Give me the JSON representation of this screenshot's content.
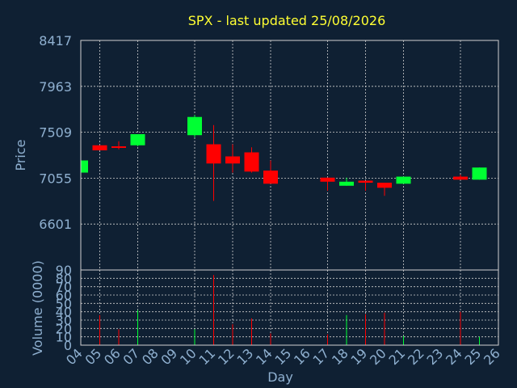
{
  "chart_data": {
    "type": "candlestick",
    "title": "SPX - last updated 25/08/2026",
    "xlabel": "Day",
    "price_panel": {
      "ylabel": "Price",
      "ylim": [
        6147,
        8417
      ],
      "yticks": [
        "8417",
        "7963",
        "7509",
        "7055",
        "6601"
      ],
      "ytick_values": [
        8417,
        7963,
        7509,
        7055,
        6601
      ]
    },
    "volume_panel": {
      "ylabel": "Volume (0000)",
      "ylim": [
        0,
        90
      ],
      "yticks": [
        "90",
        "80",
        "70",
        "60",
        "50",
        "40",
        "30",
        "20",
        "10",
        "0"
      ],
      "ytick_values": [
        90,
        80,
        70,
        60,
        50,
        40,
        30,
        20,
        10,
        0
      ]
    },
    "x_categories": [
      "04",
      "05",
      "06",
      "07",
      "08",
      "09",
      "10",
      "11",
      "12",
      "13",
      "14",
      "15",
      "16",
      "17",
      "18",
      "19",
      "20",
      "21",
      "22",
      "23",
      "24",
      "25",
      "26"
    ],
    "x_gridlines": [
      "05",
      "07",
      "10",
      "12",
      "14",
      "17",
      "19",
      "21",
      "24"
    ],
    "colors": {
      "up": "#00ff33",
      "down": "#ff0000",
      "title": "#ffff33",
      "axis_text": "#8fb0d0",
      "background": "#0f2033",
      "grid": "#d0d0d0"
    },
    "candles": [
      {
        "day": "04",
        "open": 7110,
        "high": 7240,
        "low": 7100,
        "close": 7230,
        "volume": 0
      },
      {
        "day": "05",
        "open": 7380,
        "high": 7380,
        "low": 7330,
        "close": 7330,
        "volume": 36
      },
      {
        "day": "06",
        "open": 7370,
        "high": 7420,
        "low": 7340,
        "close": 7360,
        "volume": 19
      },
      {
        "day": "07",
        "open": 7380,
        "high": 7490,
        "low": 7370,
        "close": 7490,
        "volume": 42
      },
      {
        "day": "10",
        "open": 7480,
        "high": 7680,
        "low": 7460,
        "close": 7660,
        "volume": 19
      },
      {
        "day": "11",
        "open": 7390,
        "high": 7580,
        "low": 6830,
        "close": 7200,
        "volume": 84
      },
      {
        "day": "12",
        "open": 7270,
        "high": 7390,
        "low": 7110,
        "close": 7200,
        "volume": 25
      },
      {
        "day": "13",
        "open": 7310,
        "high": 7360,
        "low": 7110,
        "close": 7120,
        "volume": 32
      },
      {
        "day": "14",
        "open": 7130,
        "high": 7230,
        "low": 7000,
        "close": 7000,
        "volume": 14
      },
      {
        "day": "17",
        "open": 7060,
        "high": 7060,
        "low": 6930,
        "close": 7020,
        "volume": 13
      },
      {
        "day": "18",
        "open": 6980,
        "high": 7060,
        "low": 6980,
        "close": 7020,
        "volume": 36
      },
      {
        "day": "19",
        "open": 7030,
        "high": 7030,
        "low": 6930,
        "close": 7010,
        "volume": 37
      },
      {
        "day": "20",
        "open": 7010,
        "high": 7010,
        "low": 6880,
        "close": 6960,
        "volume": 39
      },
      {
        "day": "21",
        "open": 7000,
        "high": 7070,
        "low": 7000,
        "close": 7070,
        "volume": 11
      },
      {
        "day": "24",
        "open": 7070,
        "high": 7090,
        "low": 7040,
        "close": 7040,
        "volume": 40
      },
      {
        "day": "25",
        "open": 7040,
        "high": 7160,
        "low": 7040,
        "close": 7160,
        "volume": 10
      }
    ]
  }
}
